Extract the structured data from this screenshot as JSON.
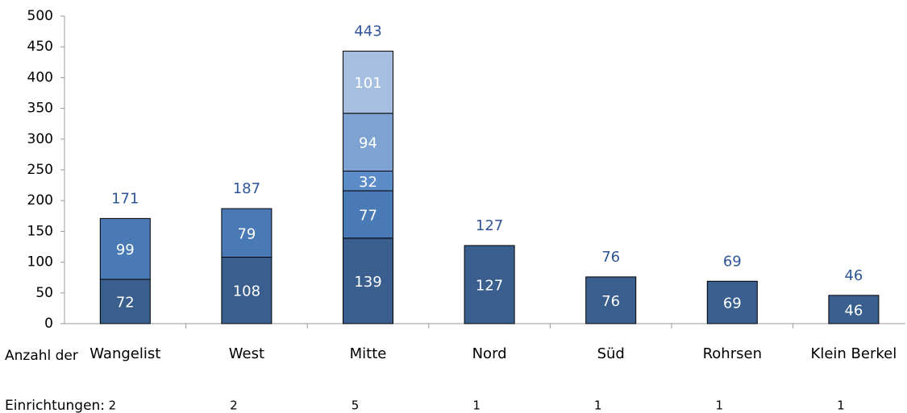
{
  "chart_data": {
    "type": "bar",
    "stacked": true,
    "categories": [
      "Wangelist",
      "West",
      "Mitte",
      "Nord",
      "Süd",
      "Rohrsen",
      "Klein Berkel"
    ],
    "series": [
      {
        "color": "#3a5f8f",
        "values": [
          72,
          108,
          139,
          127,
          76,
          69,
          46
        ]
      },
      {
        "color": "#4a7ab5",
        "values": [
          99,
          79,
          77,
          null,
          null,
          null,
          null
        ]
      },
      {
        "color": "#5b8cc8",
        "values": [
          null,
          null,
          32,
          null,
          null,
          null,
          null
        ]
      },
      {
        "color": "#7ea3d2",
        "values": [
          null,
          null,
          94,
          null,
          null,
          null,
          null
        ]
      },
      {
        "color": "#a6bfe0",
        "values": [
          null,
          null,
          101,
          null,
          null,
          null,
          null
        ]
      }
    ],
    "totals": [
      171,
      187,
      443,
      127,
      76,
      69,
      46
    ],
    "count_label": [
      "Anzahl der",
      "Einrichtungen:"
    ],
    "counts": [
      2,
      2,
      5,
      1,
      1,
      1,
      1
    ],
    "ylim": [
      0,
      500
    ],
    "yticks": [
      0,
      50,
      100,
      150,
      200,
      250,
      300,
      350,
      400,
      450,
      500
    ]
  }
}
